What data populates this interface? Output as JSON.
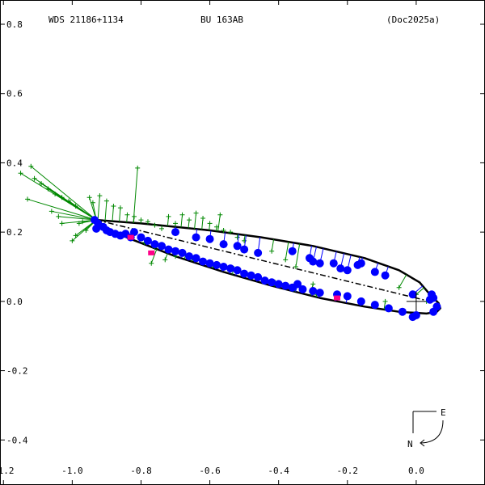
{
  "header": {
    "left": "WDS 21186+1134",
    "center": "BU  163AB",
    "right": "(Doc2025a)"
  },
  "compass": {
    "east": "E",
    "north": "N"
  },
  "chart_data": {
    "type": "scatter",
    "title": "",
    "xlabel": "",
    "ylabel": "",
    "xlim": [
      -1.21,
      0.2
    ],
    "ylim": [
      -0.53,
      0.87
    ],
    "xticks": [
      -1.2,
      -1.0,
      -0.8,
      -0.6,
      -0.4,
      -0.2,
      0.0
    ],
    "xtick_labels": [
      "-1.2",
      "-1.0",
      "-0.8",
      "-0.6",
      "-0.4",
      "-0.2",
      "0.0"
    ],
    "yticks": [
      0.8,
      0.6,
      0.4,
      0.2,
      0.0,
      -0.2,
      -0.4
    ],
    "ytick_labels": [
      "0.8",
      "0.6",
      "0.4",
      "0.2",
      "0.0",
      "-0.2",
      "-0.4"
    ],
    "grid": false,
    "colors": {
      "orbit": "#000000",
      "micrometer": "#008800",
      "interferometric": "#0000ff",
      "highlight": "#ff0088"
    },
    "orbit": [
      [
        -0.93,
        0.235
      ],
      [
        -0.8,
        0.225
      ],
      [
        -0.6,
        0.205
      ],
      [
        -0.45,
        0.185
      ],
      [
        -0.3,
        0.16
      ],
      [
        -0.15,
        0.125
      ],
      [
        -0.05,
        0.09
      ],
      [
        0.01,
        0.055
      ],
      [
        0.04,
        0.02
      ],
      [
        0.065,
        -0.005
      ],
      [
        0.07,
        -0.02
      ],
      [
        0.06,
        -0.03
      ],
      [
        0.03,
        -0.035
      ],
      [
        -0.05,
        -0.03
      ],
      [
        -0.15,
        -0.015
      ],
      [
        -0.28,
        0.01
      ],
      [
        -0.42,
        0.045
      ],
      [
        -0.56,
        0.085
      ],
      [
        -0.7,
        0.13
      ],
      [
        -0.83,
        0.18
      ],
      [
        -0.9,
        0.21
      ],
      [
        -0.93,
        0.235
      ]
    ],
    "line_of_nodes": [
      [
        -0.93,
        0.235
      ],
      [
        0.04,
        0.0
      ]
    ],
    "primary_marker": {
      "x": 0.0,
      "y": 0.0
    },
    "micrometer_points": [
      [
        -1.15,
        0.37
      ],
      [
        -1.12,
        0.39
      ],
      [
        -1.11,
        0.355
      ],
      [
        -1.13,
        0.295
      ],
      [
        -1.09,
        0.34
      ],
      [
        -1.07,
        0.325
      ],
      [
        -1.05,
        0.31
      ],
      [
        -1.03,
        0.3
      ],
      [
        -1.01,
        0.29
      ],
      [
        -0.99,
        0.275
      ],
      [
        -1.06,
        0.26
      ],
      [
        -1.04,
        0.245
      ],
      [
        -0.98,
        0.225
      ],
      [
        -1.03,
        0.225
      ],
      [
        -0.99,
        0.19
      ],
      [
        -0.96,
        0.205
      ],
      [
        -1.0,
        0.175
      ],
      [
        -0.97,
        0.23
      ],
      [
        -0.95,
        0.3
      ],
      [
        -0.94,
        0.285
      ],
      [
        -0.92,
        0.305
      ],
      [
        -0.9,
        0.29
      ],
      [
        -0.88,
        0.275
      ],
      [
        -0.86,
        0.27
      ],
      [
        -0.84,
        0.25
      ],
      [
        -0.82,
        0.245
      ],
      [
        -0.8,
        0.235
      ],
      [
        -0.78,
        0.23
      ],
      [
        -0.76,
        0.22
      ],
      [
        -0.74,
        0.21
      ],
      [
        -0.72,
        0.245
      ],
      [
        -0.7,
        0.225
      ],
      [
        -0.68,
        0.25
      ],
      [
        -0.66,
        0.235
      ],
      [
        -0.64,
        0.255
      ],
      [
        -0.62,
        0.24
      ],
      [
        -0.6,
        0.225
      ],
      [
        -0.58,
        0.215
      ],
      [
        -0.56,
        0.205
      ],
      [
        -0.54,
        0.2
      ],
      [
        -0.52,
        0.185
      ],
      [
        -0.5,
        0.175
      ],
      [
        -0.81,
        0.385
      ],
      [
        -0.57,
        0.25
      ],
      [
        -0.42,
        0.145
      ],
      [
        -0.38,
        0.12
      ],
      [
        -0.35,
        0.1
      ],
      [
        -0.3,
        0.05
      ],
      [
        -0.29,
        0.02
      ],
      [
        -0.35,
        0.04
      ],
      [
        -0.79,
        0.17
      ],
      [
        -0.76,
        0.155
      ],
      [
        -0.77,
        0.11
      ],
      [
        -0.73,
        0.12
      ],
      [
        -0.7,
        0.13
      ],
      [
        -0.67,
        0.135
      ],
      [
        -0.65,
        0.125
      ],
      [
        -0.62,
        0.115
      ],
      [
        -0.59,
        0.105
      ],
      [
        -0.56,
        0.1
      ],
      [
        -0.53,
        0.095
      ],
      [
        -0.41,
        0.055
      ],
      [
        -0.09,
        0.0
      ],
      [
        0.0,
        0.02
      ],
      [
        0.03,
        0.0
      ],
      [
        -0.05,
        0.04
      ]
    ],
    "interferometric_points": [
      [
        -0.935,
        0.235
      ],
      [
        -0.925,
        0.225
      ],
      [
        -0.91,
        0.215
      ],
      [
        -0.93,
        0.21
      ],
      [
        -0.9,
        0.205
      ],
      [
        -0.89,
        0.2
      ],
      [
        -0.875,
        0.195
      ],
      [
        -0.86,
        0.19
      ],
      [
        -0.845,
        0.195
      ],
      [
        -0.83,
        0.185
      ],
      [
        -0.82,
        0.2
      ],
      [
        -0.8,
        0.185
      ],
      [
        -0.78,
        0.175
      ],
      [
        -0.76,
        0.165
      ],
      [
        -0.74,
        0.16
      ],
      [
        -0.72,
        0.15
      ],
      [
        -0.7,
        0.145
      ],
      [
        -0.68,
        0.14
      ],
      [
        -0.66,
        0.13
      ],
      [
        -0.64,
        0.125
      ],
      [
        -0.62,
        0.115
      ],
      [
        -0.6,
        0.11
      ],
      [
        -0.58,
        0.105
      ],
      [
        -0.56,
        0.1
      ],
      [
        -0.54,
        0.095
      ],
      [
        -0.52,
        0.09
      ],
      [
        -0.5,
        0.08
      ],
      [
        -0.48,
        0.075
      ],
      [
        -0.46,
        0.07
      ],
      [
        -0.44,
        0.06
      ],
      [
        -0.42,
        0.055
      ],
      [
        -0.4,
        0.05
      ],
      [
        -0.38,
        0.045
      ],
      [
        -0.36,
        0.04
      ],
      [
        -0.345,
        0.05
      ],
      [
        -0.33,
        0.035
      ],
      [
        -0.3,
        0.03
      ],
      [
        -0.28,
        0.025
      ],
      [
        -0.23,
        0.02
      ],
      [
        -0.2,
        0.015
      ],
      [
        -0.16,
        0.0
      ],
      [
        -0.12,
        -0.01
      ],
      [
        -0.08,
        -0.02
      ],
      [
        -0.04,
        -0.03
      ],
      [
        -0.01,
        -0.045
      ],
      [
        0.0,
        -0.04
      ],
      [
        0.05,
        -0.03
      ],
      [
        0.06,
        -0.015
      ],
      [
        0.05,
        0.01
      ],
      [
        0.045,
        0.02
      ],
      [
        -0.7,
        0.2
      ],
      [
        -0.64,
        0.185
      ],
      [
        -0.6,
        0.18
      ],
      [
        -0.56,
        0.165
      ],
      [
        -0.52,
        0.16
      ],
      [
        -0.5,
        0.15
      ],
      [
        -0.46,
        0.14
      ],
      [
        -0.36,
        0.145
      ],
      [
        -0.31,
        0.125
      ],
      [
        -0.3,
        0.115
      ],
      [
        -0.28,
        0.11
      ],
      [
        -0.24,
        0.11
      ],
      [
        -0.22,
        0.095
      ],
      [
        -0.2,
        0.09
      ],
      [
        -0.17,
        0.105
      ],
      [
        -0.16,
        0.11
      ],
      [
        -0.12,
        0.085
      ],
      [
        -0.09,
        0.075
      ],
      [
        -0.01,
        0.02
      ],
      [
        0.04,
        0.005
      ]
    ],
    "highlight_points": [
      [
        -0.83,
        0.185
      ],
      [
        -0.77,
        0.14
      ],
      [
        -0.23,
        0.01
      ]
    ]
  }
}
